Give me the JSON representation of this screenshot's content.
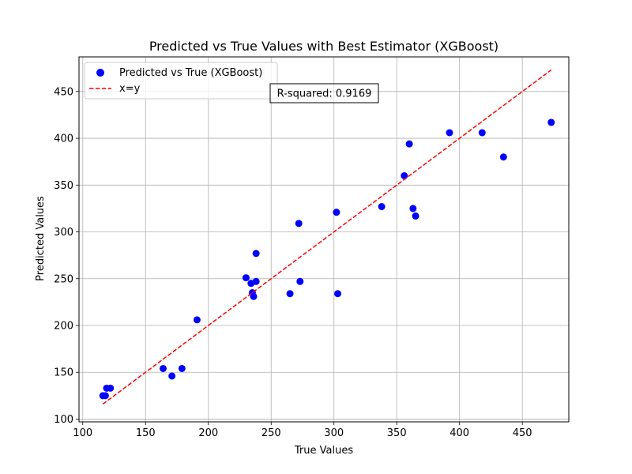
{
  "chart_data": {
    "type": "scatter",
    "title": "Predicted vs True Values with Best Estimator (XGBoost)",
    "xlabel": "True Values",
    "ylabel": "Predicted Values",
    "xlim": [
      97,
      487
    ],
    "ylim": [
      97,
      487
    ],
    "x_ticks": [
      100,
      150,
      200,
      250,
      300,
      350,
      400,
      450
    ],
    "y_ticks": [
      100,
      150,
      200,
      250,
      300,
      350,
      400,
      450
    ],
    "grid": true,
    "legend_position": "top-left",
    "annotation": "R-squared: 0.9169",
    "series": [
      {
        "name": "Predicted vs True (XGBoost)",
        "kind": "scatter",
        "color": "#0000ff",
        "points": [
          [
            116,
            125
          ],
          [
            118,
            125
          ],
          [
            119,
            133
          ],
          [
            122,
            133
          ],
          [
            164,
            154
          ],
          [
            171,
            146
          ],
          [
            179,
            154
          ],
          [
            191,
            206
          ],
          [
            230,
            251
          ],
          [
            234,
            245
          ],
          [
            235,
            235
          ],
          [
            236,
            231
          ],
          [
            238,
            247
          ],
          [
            238,
            277
          ],
          [
            265,
            234
          ],
          [
            272,
            309
          ],
          [
            273,
            247
          ],
          [
            302,
            321
          ],
          [
            303,
            234
          ],
          [
            338,
            327
          ],
          [
            356,
            360
          ],
          [
            360,
            394
          ],
          [
            363,
            325
          ],
          [
            365,
            317
          ],
          [
            392,
            406
          ],
          [
            418,
            406
          ],
          [
            435,
            380
          ],
          [
            473,
            417
          ]
        ]
      },
      {
        "name": "x=y",
        "kind": "line",
        "style": "dashed",
        "color": "#ff0000",
        "range": [
          116,
          473
        ]
      }
    ]
  }
}
